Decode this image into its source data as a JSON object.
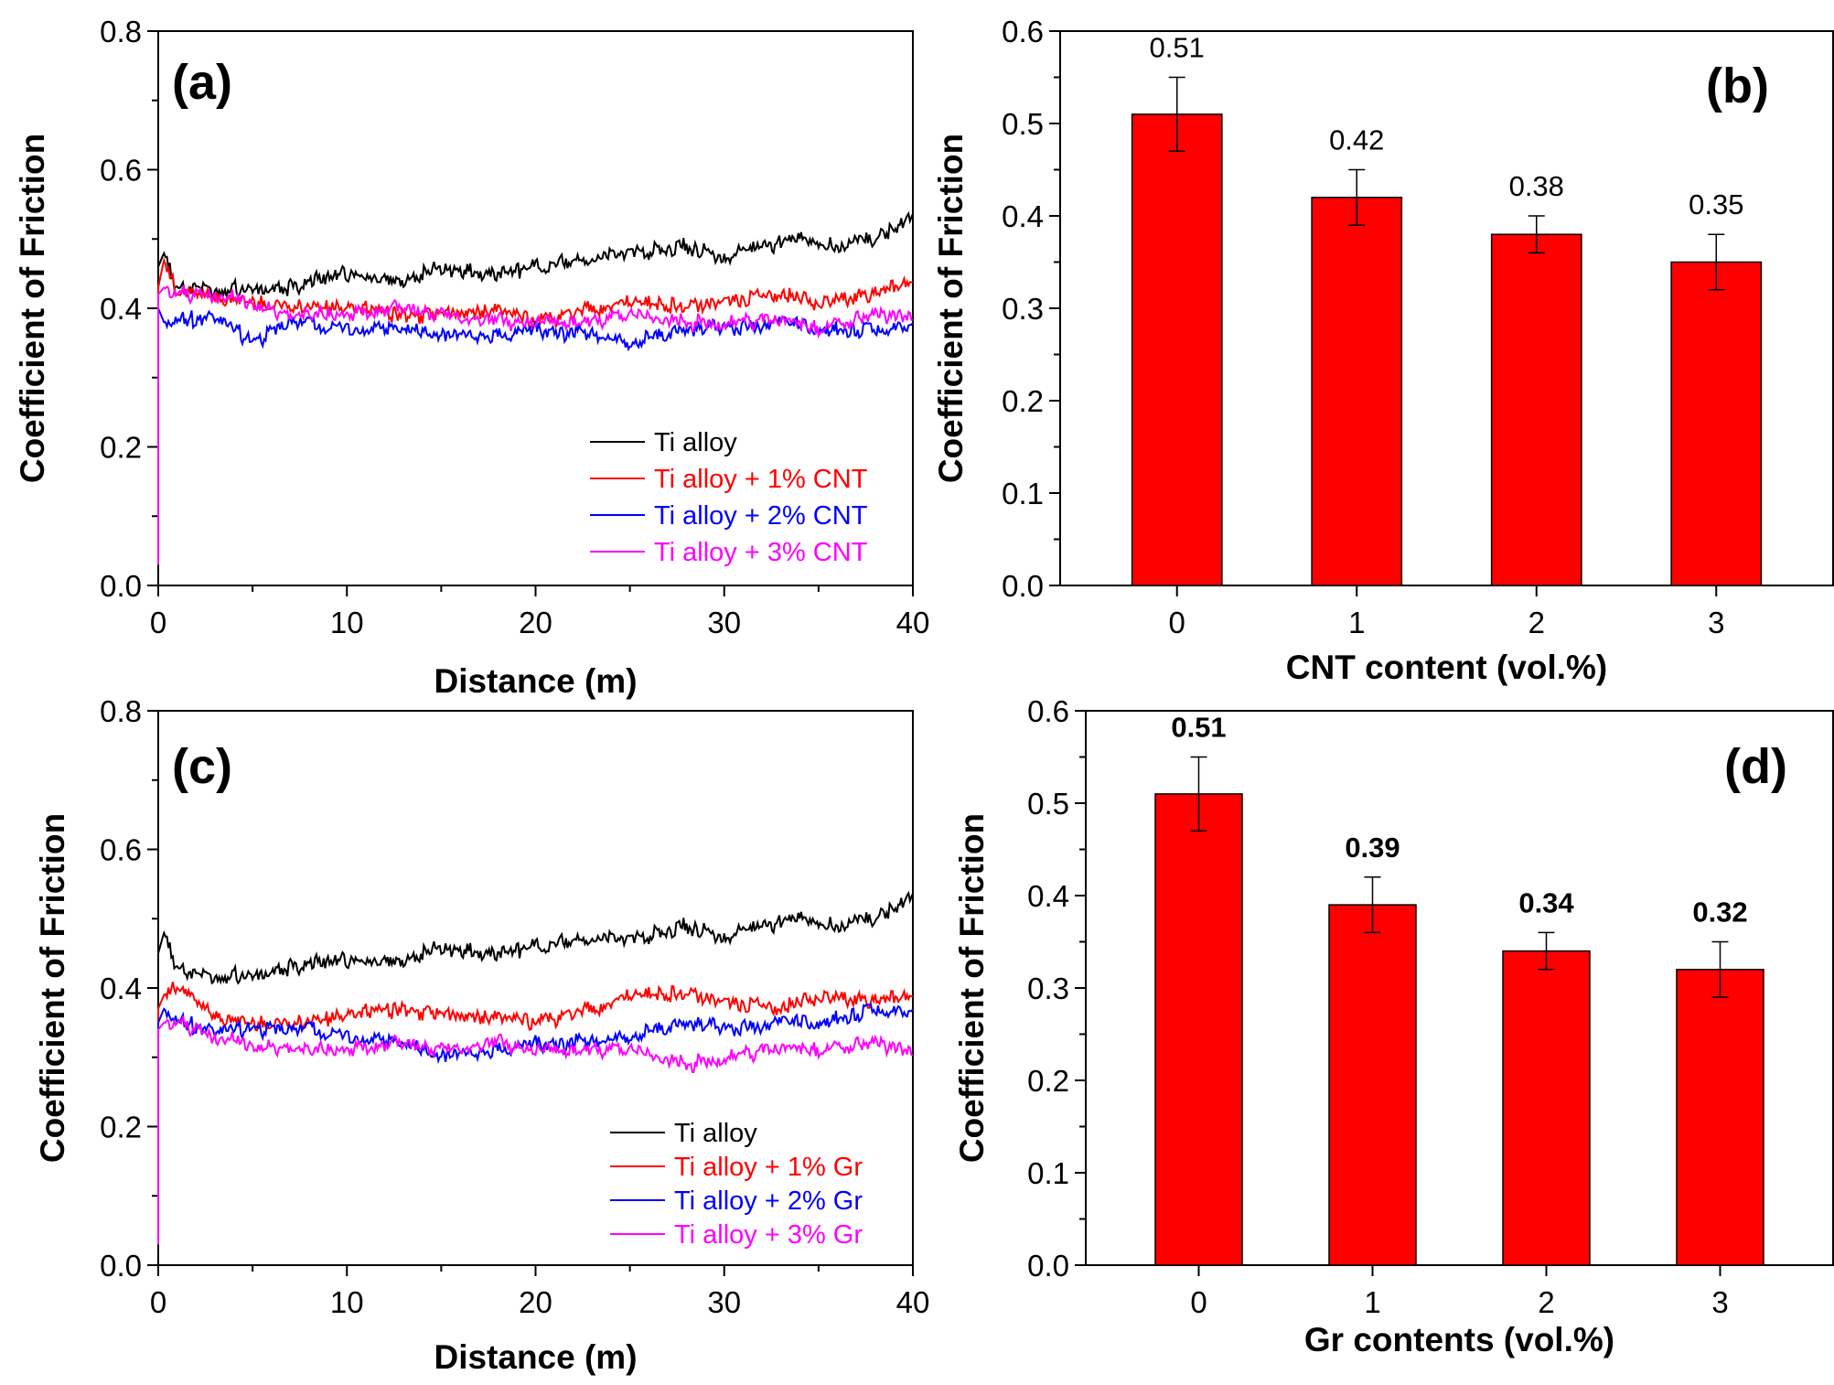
{
  "chart_data": [
    {
      "panel": "(a)",
      "type": "line",
      "xlabel": "Distance (m)",
      "ylabel": "Coefficient of Friction",
      "xlim": [
        0,
        40
      ],
      "ylim": [
        0.0,
        0.8
      ],
      "xticks": [
        "0",
        "10",
        "20",
        "30",
        "40"
      ],
      "yticks": [
        "0.0",
        "0.2",
        "0.4",
        "0.6",
        "0.8"
      ],
      "legend_position": "bottom-right",
      "series": [
        {
          "name": "Ti alloy",
          "color": "#000000",
          "x": [
            0,
            0.3,
            1,
            2,
            3,
            5,
            7,
            10,
            13,
            15,
            18,
            20,
            23,
            25,
            28,
            30,
            32,
            34,
            36,
            38,
            40
          ],
          "y": [
            0.46,
            0.48,
            0.43,
            0.43,
            0.43,
            0.43,
            0.43,
            0.45,
            0.44,
            0.46,
            0.45,
            0.46,
            0.47,
            0.48,
            0.49,
            0.47,
            0.49,
            0.5,
            0.49,
            0.5,
            0.53
          ]
        },
        {
          "name": "Ti alloy + 1% CNT",
          "color": "#ff0000",
          "x": [
            0,
            0.3,
            1,
            2,
            5,
            8,
            10,
            13,
            15,
            18,
            20,
            23,
            25,
            28,
            30,
            33,
            35,
            38,
            40
          ],
          "y": [
            0.43,
            0.47,
            0.42,
            0.42,
            0.41,
            0.4,
            0.4,
            0.39,
            0.39,
            0.4,
            0.38,
            0.4,
            0.41,
            0.4,
            0.41,
            0.42,
            0.41,
            0.42,
            0.44
          ]
        },
        {
          "name": "Ti alloy + 2% CNT",
          "color": "#0000ff",
          "x": [
            0,
            0.3,
            1,
            3,
            5,
            7,
            10,
            13,
            15,
            18,
            20,
            23,
            25,
            28,
            30,
            33,
            35,
            38,
            40
          ],
          "y": [
            0.4,
            0.38,
            0.38,
            0.39,
            0.35,
            0.38,
            0.37,
            0.37,
            0.36,
            0.36,
            0.37,
            0.36,
            0.35,
            0.37,
            0.37,
            0.38,
            0.37,
            0.37,
            0.37
          ]
        },
        {
          "name": "Ti alloy + 3% CNT",
          "color": "#ff00ff",
          "x": [
            0,
            0.3,
            1,
            3,
            5,
            7,
            10,
            13,
            15,
            18,
            20,
            23,
            25,
            28,
            30,
            33,
            35,
            38,
            40
          ],
          "y": [
            0.42,
            0.43,
            0.42,
            0.42,
            0.41,
            0.39,
            0.39,
            0.4,
            0.39,
            0.38,
            0.38,
            0.38,
            0.39,
            0.38,
            0.38,
            0.38,
            0.37,
            0.39,
            0.39
          ]
        }
      ]
    },
    {
      "panel": "(b)",
      "type": "bar",
      "xlabel": "CNT content (vol.%)",
      "ylabel": "Coefficient of Friction",
      "ylim": [
        0.0,
        0.6
      ],
      "yticks": [
        "0.0",
        "0.1",
        "0.2",
        "0.3",
        "0.4",
        "0.5",
        "0.6"
      ],
      "categories": [
        "0",
        "1",
        "2",
        "3"
      ],
      "values": [
        0.51,
        0.42,
        0.38,
        0.35
      ],
      "errors": [
        0.04,
        0.03,
        0.02,
        0.03
      ],
      "labels": [
        "0.51",
        "0.42",
        "0.38",
        "0.35"
      ],
      "bold_labels": false,
      "bar_color": "#ff0000"
    },
    {
      "panel": "(c)",
      "type": "line",
      "xlabel": "Distance (m)",
      "ylabel": "Coefficient of Friction",
      "xlim": [
        0,
        40
      ],
      "ylim": [
        0.0,
        0.8
      ],
      "xticks": [
        "0",
        "10",
        "20",
        "30",
        "40"
      ],
      "yticks": [
        "0.0",
        "0.2",
        "0.4",
        "0.6",
        "0.8"
      ],
      "legend_position": "bottom-right",
      "series": [
        {
          "name": "Ti alloy",
          "color": "#000000",
          "x": [
            0,
            0.3,
            1,
            2,
            3,
            5,
            7,
            10,
            13,
            15,
            18,
            20,
            23,
            25,
            28,
            30,
            32,
            34,
            36,
            38,
            40
          ],
          "y": [
            0.45,
            0.48,
            0.43,
            0.42,
            0.42,
            0.42,
            0.43,
            0.44,
            0.44,
            0.46,
            0.45,
            0.46,
            0.47,
            0.47,
            0.49,
            0.47,
            0.49,
            0.5,
            0.49,
            0.5,
            0.53
          ]
        },
        {
          "name": "Ti alloy + 1% Gr",
          "color": "#ff0000",
          "x": [
            0,
            0.3,
            1,
            3,
            5,
            8,
            10,
            13,
            15,
            18,
            20,
            23,
            25,
            28,
            30,
            33,
            35,
            38,
            40
          ],
          "y": [
            0.37,
            0.39,
            0.4,
            0.36,
            0.35,
            0.35,
            0.36,
            0.37,
            0.36,
            0.36,
            0.35,
            0.37,
            0.39,
            0.39,
            0.38,
            0.37,
            0.39,
            0.38,
            0.39
          ]
        },
        {
          "name": "Ti alloy + 2% Gr",
          "color": "#0000ff",
          "x": [
            0,
            0.3,
            1,
            3,
            5,
            8,
            10,
            13,
            15,
            18,
            20,
            23,
            25,
            28,
            30,
            33,
            35,
            38,
            40
          ],
          "y": [
            0.35,
            0.37,
            0.35,
            0.34,
            0.34,
            0.34,
            0.33,
            0.32,
            0.3,
            0.31,
            0.32,
            0.32,
            0.33,
            0.35,
            0.34,
            0.35,
            0.35,
            0.37,
            0.36
          ]
        },
        {
          "name": "Ti alloy + 3% Gr",
          "color": "#ff00ff",
          "x": [
            0,
            0.3,
            1,
            3,
            5,
            8,
            10,
            13,
            15,
            18,
            20,
            23,
            25,
            28,
            30,
            33,
            35,
            38,
            40
          ],
          "y": [
            0.34,
            0.35,
            0.35,
            0.33,
            0.32,
            0.31,
            0.31,
            0.32,
            0.31,
            0.32,
            0.31,
            0.31,
            0.31,
            0.29,
            0.3,
            0.31,
            0.31,
            0.32,
            0.31
          ]
        }
      ]
    },
    {
      "panel": "(d)",
      "type": "bar",
      "xlabel": "Gr contents (vol.%)",
      "ylabel": "Coefficient of Friction",
      "ylim": [
        0.0,
        0.6
      ],
      "yticks": [
        "0.0",
        "0.1",
        "0.2",
        "0.3",
        "0.4",
        "0.5",
        "0.6"
      ],
      "categories": [
        "0",
        "1",
        "2",
        "3"
      ],
      "values": [
        0.51,
        0.39,
        0.34,
        0.32
      ],
      "errors": [
        0.04,
        0.03,
        0.02,
        0.03
      ],
      "labels": [
        "0.51",
        "0.39",
        "0.34",
        "0.32"
      ],
      "bold_labels": true,
      "bar_color": "#ff0000"
    }
  ]
}
